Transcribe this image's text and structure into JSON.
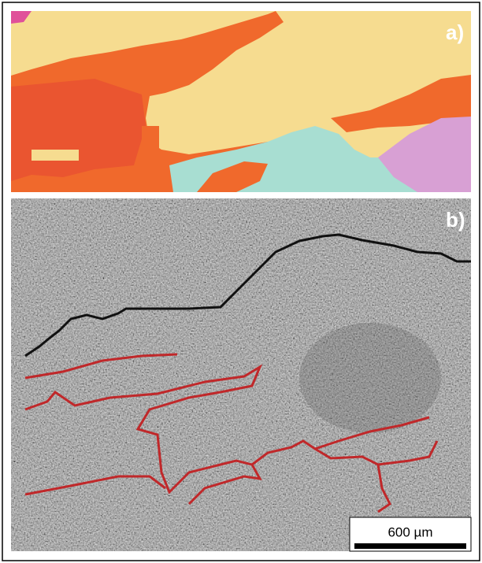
{
  "panels": [
    {
      "label": "a)"
    },
    {
      "label": "b)"
    }
  ],
  "scale_bar": {
    "label": "600 µm"
  }
}
